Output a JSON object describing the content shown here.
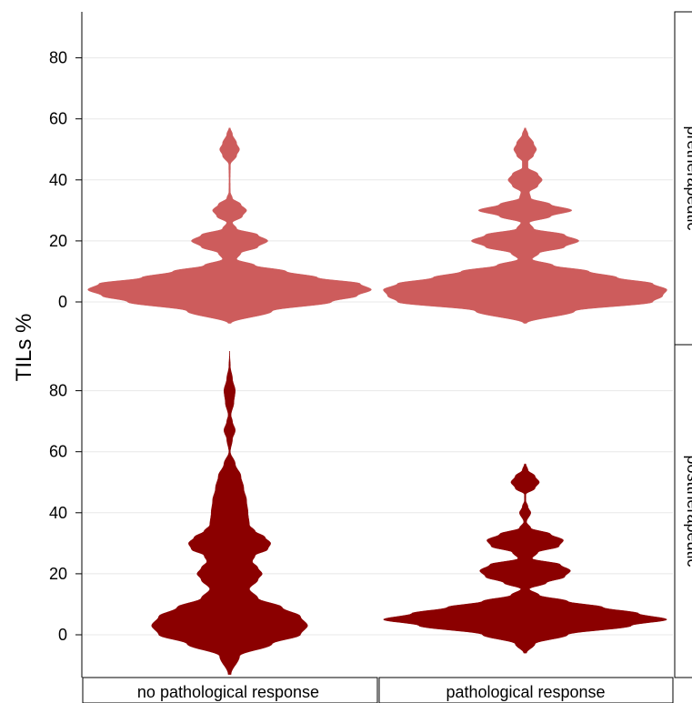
{
  "chart_data": {
    "type": "violin",
    "ylabel": "TILs %",
    "ylim": [
      -13,
      95
    ],
    "yticks": [
      0,
      20,
      40,
      60,
      80
    ],
    "grid": true,
    "panel_column_labels": [
      "no pathological response",
      "pathological response"
    ],
    "panel_row_labels": [
      "pretherapeutic",
      "posttherapeutic"
    ],
    "colors": {
      "pretherapeutic": "#cd5c5c",
      "posttherapeutic": "#8b0000"
    },
    "panels": [
      {
        "row": "pretherapeutic",
        "column": "no pathological response",
        "y_range": [
          -7,
          57
        ],
        "density_profile": [
          [
            -7,
            0.01
          ],
          [
            -3,
            0.3
          ],
          [
            0,
            0.72
          ],
          [
            2,
            0.9
          ],
          [
            4,
            1.0
          ],
          [
            6,
            0.92
          ],
          [
            8,
            0.62
          ],
          [
            10,
            0.4
          ],
          [
            12,
            0.18
          ],
          [
            14,
            0.05
          ],
          [
            16,
            0.08
          ],
          [
            18,
            0.2
          ],
          [
            20,
            0.27
          ],
          [
            22,
            0.2
          ],
          [
            24,
            0.05
          ],
          [
            26,
            0.02
          ],
          [
            28,
            0.09
          ],
          [
            30,
            0.12
          ],
          [
            32,
            0.08
          ],
          [
            34,
            0.02
          ],
          [
            36,
            0.005
          ],
          [
            40,
            0.004
          ],
          [
            45,
            0.006
          ],
          [
            48,
            0.05
          ],
          [
            50,
            0.07
          ],
          [
            52,
            0.05
          ],
          [
            55,
            0.02
          ],
          [
            57,
            0.005
          ]
        ]
      },
      {
        "row": "pretherapeutic",
        "column": "pathological response",
        "y_range": [
          -7,
          57
        ],
        "density_profile": [
          [
            -7,
            0.01
          ],
          [
            -3,
            0.35
          ],
          [
            0,
            0.9
          ],
          [
            2,
            0.97
          ],
          [
            4,
            1.0
          ],
          [
            6,
            0.9
          ],
          [
            8,
            0.65
          ],
          [
            10,
            0.45
          ],
          [
            12,
            0.2
          ],
          [
            14,
            0.05
          ],
          [
            16,
            0.1
          ],
          [
            18,
            0.28
          ],
          [
            20,
            0.38
          ],
          [
            22,
            0.28
          ],
          [
            24,
            0.06
          ],
          [
            26,
            0.03
          ],
          [
            28,
            0.18
          ],
          [
            30,
            0.33
          ],
          [
            32,
            0.18
          ],
          [
            34,
            0.04
          ],
          [
            36,
            0.03
          ],
          [
            38,
            0.09
          ],
          [
            40,
            0.12
          ],
          [
            42,
            0.09
          ],
          [
            44,
            0.02
          ],
          [
            46,
            0.02
          ],
          [
            48,
            0.06
          ],
          [
            50,
            0.08
          ],
          [
            52,
            0.06
          ],
          [
            55,
            0.02
          ],
          [
            57,
            0.005
          ]
        ]
      },
      {
        "row": "posttherapeutic",
        "column": "no pathological response",
        "y_range": [
          -13,
          93
        ],
        "density_profile": [
          [
            -13,
            0.01
          ],
          [
            -7,
            0.07
          ],
          [
            -3,
            0.3
          ],
          [
            0,
            0.5
          ],
          [
            3,
            0.55
          ],
          [
            6,
            0.5
          ],
          [
            9,
            0.37
          ],
          [
            12,
            0.2
          ],
          [
            15,
            0.14
          ],
          [
            18,
            0.2
          ],
          [
            20,
            0.23
          ],
          [
            22,
            0.2
          ],
          [
            24,
            0.16
          ],
          [
            26,
            0.18
          ],
          [
            28,
            0.27
          ],
          [
            30,
            0.29
          ],
          [
            32,
            0.25
          ],
          [
            34,
            0.18
          ],
          [
            36,
            0.14
          ],
          [
            40,
            0.13
          ],
          [
            44,
            0.12
          ],
          [
            48,
            0.1
          ],
          [
            52,
            0.08
          ],
          [
            56,
            0.04
          ],
          [
            60,
            0.005
          ],
          [
            64,
            0.02
          ],
          [
            67,
            0.04
          ],
          [
            70,
            0.02
          ],
          [
            72,
            0.01
          ],
          [
            76,
            0.03
          ],
          [
            80,
            0.04
          ],
          [
            84,
            0.02
          ],
          [
            88,
            0.005
          ],
          [
            93,
            0.0
          ]
        ]
      },
      {
        "row": "posttherapeutic",
        "column": "pathological response",
        "y_range": [
          -6,
          56
        ],
        "density_profile": [
          [
            -6,
            0.01
          ],
          [
            -3,
            0.07
          ],
          [
            0,
            0.3
          ],
          [
            3,
            0.75
          ],
          [
            5,
            1.0
          ],
          [
            7,
            0.8
          ],
          [
            9,
            0.55
          ],
          [
            11,
            0.3
          ],
          [
            13,
            0.1
          ],
          [
            15,
            0.03
          ],
          [
            17,
            0.15
          ],
          [
            19,
            0.28
          ],
          [
            21,
            0.32
          ],
          [
            23,
            0.25
          ],
          [
            25,
            0.05
          ],
          [
            27,
            0.09
          ],
          [
            29,
            0.24
          ],
          [
            31,
            0.27
          ],
          [
            33,
            0.18
          ],
          [
            35,
            0.04
          ],
          [
            37,
            0.01
          ],
          [
            40,
            0.04
          ],
          [
            42,
            0.02
          ],
          [
            44,
            0.005
          ],
          [
            46,
            0.005
          ],
          [
            48,
            0.07
          ],
          [
            50,
            0.1
          ],
          [
            52,
            0.07
          ],
          [
            54,
            0.02
          ],
          [
            56,
            0.005
          ]
        ]
      }
    ]
  }
}
